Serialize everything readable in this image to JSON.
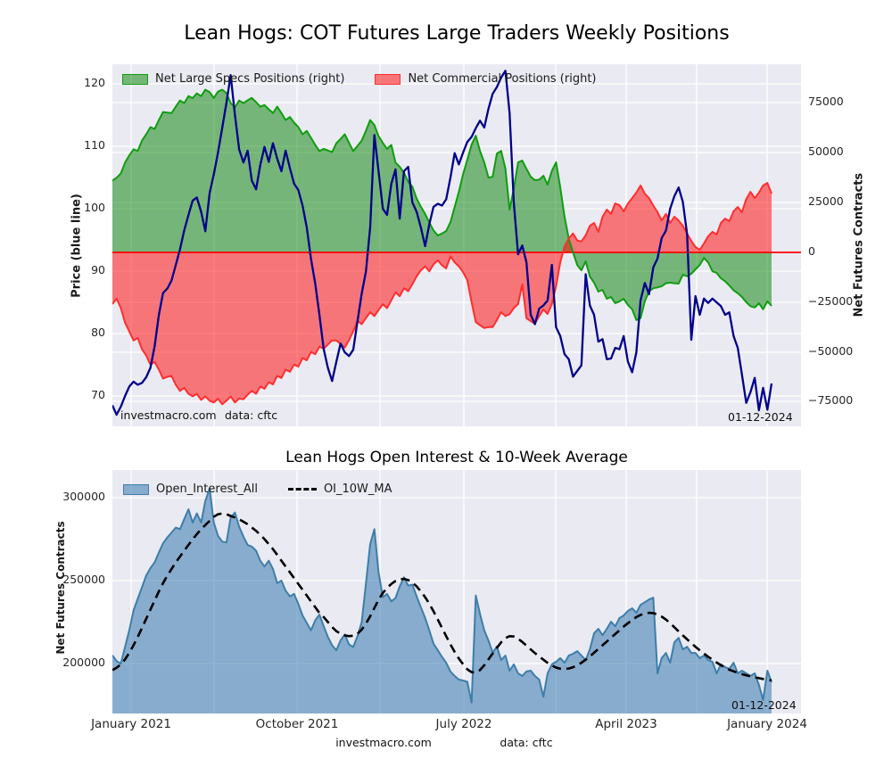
{
  "top_chart": {
    "title": "Lean Hogs: COT Futures Large Traders Weekly Positions",
    "legend": [
      "Net Large Specs Positions (right)",
      "Net Commercial Positions (right)"
    ],
    "ylabel_left": "Price (blue line)",
    "ylabel_right": "Net Futures Contracts",
    "watermark": "investmacro.com",
    "data_source": "data: cftc",
    "date_label": "01-12-2024"
  },
  "bottom_chart": {
    "title": "Lean Hogs Open Interest & 10-Week Average",
    "legend": [
      "Open_Interest_All",
      "OI_10W_MA"
    ],
    "ylabel_left": "Net Futures Contracts",
    "watermark": "investmacro.com",
    "data_source": "data: cftc",
    "date_label": "01-12-2024"
  },
  "chart_data": [
    {
      "type": "area",
      "title": "Lean Hogs: COT Futures Large Traders Weekly Positions",
      "x_unit": "week_index_2021_01_to_2024_01",
      "n_weeks": 157,
      "xtick_labels": [
        "January 2021",
        "October 2021",
        "July 2022",
        "April 2023",
        "January 2024"
      ],
      "ylabel_price": "Price (blue line)",
      "ylim_price": [
        65.1,
        123.1
      ],
      "yticks_price": [
        "120",
        "110",
        "100",
        "90",
        "80",
        "70"
      ],
      "ylabel_net": "Net Futures Contracts",
      "ylim_net": [
        -87360,
        94540
      ],
      "yticks_net": [
        "75000",
        "50000",
        "25000",
        "0",
        "−25000",
        "−50000",
        "−75000"
      ],
      "zero_line_color": "#ff0000",
      "grid": true,
      "legend_position": "upper-left-inside",
      "series": [
        {
          "name": "Net Large Specs Positions (right)",
          "kind": "area",
          "axis": "net",
          "color": "#008000",
          "values": [
            36000,
            37500,
            39700,
            45100,
            48700,
            51800,
            51000,
            56200,
            59300,
            62900,
            62000,
            66500,
            70500,
            70200,
            70000,
            73200,
            76300,
            75000,
            78500,
            77500,
            79900,
            78500,
            81700,
            80500,
            77600,
            80800,
            81700,
            80000,
            75000,
            72800,
            76300,
            75000,
            76400,
            77600,
            75500,
            73200,
            74000,
            71900,
            70000,
            73200,
            70000,
            66500,
            68000,
            65200,
            63000,
            59300,
            61000,
            57600,
            54000,
            50900,
            52000,
            51200,
            50400,
            54900,
            57000,
            59300,
            55000,
            50900,
            53500,
            56200,
            61000,
            66500,
            64000,
            58400,
            55000,
            52000,
            54000,
            45100,
            43000,
            40000,
            35500,
            33000,
            27000,
            23000,
            19300,
            15000,
            11000,
            8500,
            9500,
            10700,
            15200,
            22800,
            30400,
            39400,
            46500,
            54100,
            58600,
            51000,
            45200,
            37600,
            38000,
            49700,
            51000,
            42100,
            21500,
            31800,
            45200,
            46100,
            42000,
            38000,
            36300,
            36500,
            38500,
            34000,
            41000,
            45200,
            32700,
            17900,
            7000,
            0,
            -6300,
            -9000,
            -4500,
            -12100,
            -15200,
            -19700,
            -18800,
            -23300,
            -22400,
            -25500,
            -24600,
            -23300,
            -26400,
            -28600,
            -34000,
            -33000,
            -24500,
            -19500,
            -18000,
            -17600,
            -17000,
            -15500,
            -15200,
            -15500,
            -15700,
            -11200,
            -12000,
            -10700,
            -8500,
            -6300,
            -2800,
            -5000,
            -9500,
            -10300,
            -13000,
            -14500,
            -16600,
            -19000,
            -20500,
            -22400,
            -25000,
            -27000,
            -27700,
            -25500,
            -28600,
            -24600,
            -26900
          ]
        },
        {
          "name": "Net Commercial Positions (right)",
          "kind": "area",
          "axis": "net",
          "color": "#ff0000",
          "values": [
            -26000,
            -23200,
            -28000,
            -35300,
            -39700,
            -44200,
            -43000,
            -48700,
            -51800,
            -56300,
            -55000,
            -58900,
            -63400,
            -62500,
            -62000,
            -66500,
            -69600,
            -68000,
            -71000,
            -72300,
            -71000,
            -74100,
            -72300,
            -74500,
            -75400,
            -73500,
            -76300,
            -74500,
            -72300,
            -75400,
            -73400,
            -73800,
            -71500,
            -69600,
            -71000,
            -67400,
            -68500,
            -65200,
            -66300,
            -62000,
            -63100,
            -58900,
            -60000,
            -56300,
            -57400,
            -53100,
            -54200,
            -50000,
            -51100,
            -47300,
            -48400,
            -46300,
            -44200,
            -44200,
            -46000,
            -47800,
            -44000,
            -39700,
            -34400,
            -36000,
            -33000,
            -30000,
            -32000,
            -29000,
            -26000,
            -28000,
            -24000,
            -20000,
            -22000,
            -18000,
            -19500,
            -16000,
            -12000,
            -9000,
            -7000,
            -9500,
            -6000,
            -4000,
            -6500,
            -8000,
            -2000,
            -5000,
            -7000,
            -10000,
            -14000,
            -25000,
            -35000,
            -36600,
            -38000,
            -37500,
            -37500,
            -34000,
            -30000,
            -32000,
            -31000,
            -28000,
            -26000,
            -16100,
            -33100,
            -34500,
            -35800,
            -32000,
            -28700,
            -30900,
            -26000,
            -17000,
            -5000,
            3000,
            7000,
            9500,
            6000,
            5500,
            8500,
            13400,
            14800,
            10300,
            17900,
            21500,
            19300,
            24600,
            23700,
            20600,
            24500,
            27300,
            30000,
            33600,
            29500,
            27300,
            23500,
            20200,
            16100,
            19300,
            14800,
            17900,
            16000,
            13400,
            9400,
            5800,
            2700,
            1300,
            4500,
            8100,
            10300,
            9000,
            14800,
            17000,
            15700,
            20600,
            22800,
            20200,
            26800,
            30400,
            27300,
            30000,
            33600,
            34900,
            29500
          ]
        },
        {
          "name": "Price",
          "kind": "line",
          "axis": "price",
          "color": "#00008b",
          "values": [
            68.5,
            67.0,
            68.3,
            70.0,
            71.5,
            72.3,
            71.8,
            72.1,
            73.0,
            74.5,
            78.0,
            83.0,
            86.5,
            87.2,
            88.5,
            91.0,
            93.5,
            96.5,
            99.0,
            101.3,
            101.8,
            99.5,
            96.4,
            102.5,
            105.5,
            109.0,
            113.0,
            117.0,
            121.4,
            115.0,
            109.5,
            107.4,
            109.3,
            104.5,
            103.1,
            107.0,
            109.9,
            107.5,
            110.5,
            108.0,
            106.0,
            109.3,
            106.5,
            104.0,
            103.0,
            100.5,
            97.0,
            92.0,
            88.0,
            83.0,
            77.5,
            74.5,
            72.4,
            75.5,
            78.4,
            77.0,
            76.4,
            77.4,
            82.0,
            86.4,
            89.9,
            97.0,
            111.8,
            106.0,
            100.0,
            99.0,
            104.0,
            106.3,
            98.4,
            106.0,
            106.7,
            101.0,
            99.5,
            97.0,
            94.0,
            97.5,
            100.3,
            100.8,
            100.5,
            101.5,
            105.0,
            108.9,
            107.1,
            109.0,
            110.7,
            111.5,
            112.9,
            114.1,
            113.0,
            116.0,
            118.4,
            119.5,
            121.0,
            122.1,
            115.3,
            101.0,
            92.7,
            94.1,
            91.4,
            83.0,
            81.5,
            84.0,
            84.5,
            85.3,
            91.0,
            81.0,
            79.6,
            76.7,
            75.9,
            73.1,
            74.0,
            74.9,
            89.5,
            84.5,
            83.0,
            78.7,
            79.1,
            75.9,
            76.0,
            77.7,
            77.5,
            79.6,
            75.5,
            73.8,
            77.0,
            85.3,
            88.1,
            86.3,
            90.6,
            92.0,
            95.3,
            96.5,
            100.0,
            102.0,
            103.4,
            101.1,
            95.9,
            79.0,
            86.0,
            83.0,
            85.6,
            84.9,
            85.6,
            85.0,
            84.4,
            83.0,
            83.4,
            79.6,
            77.7,
            73.4,
            68.9,
            70.6,
            72.9,
            67.7,
            71.3,
            67.8,
            72.0
          ]
        }
      ],
      "annotations": [
        "investmacro.com",
        "data: cftc",
        "01-12-2024"
      ]
    },
    {
      "type": "area",
      "title": "Lean Hogs Open Interest & 10-Week Average",
      "x_unit": "week_index_2021_01_to_2024_01",
      "n_weeks": 157,
      "xtick_labels": [
        "January 2021",
        "October 2021",
        "July 2022",
        "April 2023",
        "January 2024"
      ],
      "ylabel": "Net Futures Contracts",
      "ylim": [
        169890,
        316670
      ],
      "yticks": [
        "300000",
        "250000",
        "200000"
      ],
      "grid": true,
      "legend_position": "upper-left-inside",
      "series": [
        {
          "name": "Open_Interest_All",
          "kind": "area",
          "color": "#4682b4",
          "values": [
            205000,
            201500,
            200000,
            210000,
            220000,
            232000,
            239000,
            246000,
            253000,
            257500,
            261000,
            267000,
            272500,
            276000,
            279000,
            282000,
            281000,
            287000,
            293000,
            285000,
            290500,
            285000,
            298000,
            305500,
            285000,
            277000,
            273500,
            273000,
            288000,
            291000,
            282500,
            276500,
            271500,
            270500,
            268000,
            262000,
            258500,
            262000,
            257000,
            248500,
            250000,
            244000,
            240500,
            242000,
            236000,
            229000,
            224500,
            220000,
            226000,
            229500,
            222500,
            216000,
            211000,
            208000,
            214000,
            217500,
            211500,
            210000,
            216500,
            225000,
            248000,
            272000,
            281000,
            255000,
            240000,
            242000,
            237500,
            239500,
            246500,
            252000,
            247000,
            247500,
            240500,
            234000,
            227500,
            220000,
            212000,
            208000,
            204000,
            200500,
            195200,
            192500,
            190300,
            189800,
            189000,
            176500,
            241000,
            230000,
            220000,
            213900,
            206600,
            210300,
            202100,
            204800,
            195700,
            199500,
            194100,
            192500,
            195200,
            195700,
            192500,
            190300,
            180000,
            194100,
            199500,
            201100,
            203300,
            200500,
            204800,
            205900,
            207500,
            204800,
            202100,
            208600,
            218200,
            220900,
            217100,
            220900,
            225200,
            222500,
            227400,
            229000,
            231700,
            233300,
            230600,
            235400,
            237000,
            238600,
            239700,
            194100,
            203300,
            206400,
            200500,
            212800,
            215500,
            208600,
            210100,
            206400,
            206400,
            203300,
            204800,
            202100,
            201100,
            194100,
            199500,
            197900,
            196800,
            200500,
            194100,
            195700,
            194100,
            192500,
            194100,
            187200,
            178100,
            195700,
            188800
          ]
        },
        {
          "name": "OI_10W_MA",
          "kind": "dashed-line",
          "color": "#000000",
          "values": [
            196000,
            197500,
            199500,
            202500,
            206500,
            211000,
            216000,
            221500,
            227000,
            232500,
            238000,
            243500,
            248500,
            253000,
            257000,
            261000,
            264500,
            268000,
            271500,
            275000,
            278000,
            281000,
            283500,
            286000,
            288500,
            290000,
            290500,
            290000,
            289000,
            288000,
            287000,
            285500,
            284000,
            282000,
            280000,
            277500,
            275000,
            272000,
            269000,
            265500,
            262000,
            258500,
            255000,
            251500,
            248000,
            244500,
            241000,
            237500,
            234000,
            230500,
            228000,
            225000,
            222000,
            219500,
            218000,
            217000,
            216500,
            216800,
            218000,
            220500,
            224000,
            228500,
            233500,
            238500,
            242500,
            245500,
            248000,
            249800,
            250800,
            251000,
            250300,
            248800,
            246500,
            243500,
            240000,
            236000,
            231500,
            226500,
            221500,
            216500,
            211500,
            207000,
            203000,
            199500,
            196500,
            194800,
            194600,
            196000,
            199000,
            202500,
            206000,
            209500,
            212800,
            215300,
            216500,
            216300,
            215000,
            213000,
            210800,
            208500,
            206300,
            204300,
            202300,
            200400,
            198800,
            197600,
            196900,
            196700,
            197000,
            197800,
            199000,
            200500,
            202300,
            204300,
            206500,
            208800,
            211000,
            213300,
            215500,
            217800,
            220000,
            222300,
            224300,
            226300,
            228000,
            229300,
            230200,
            230600,
            230400,
            229600,
            228300,
            226500,
            224300,
            221900,
            219400,
            217000,
            214600,
            212300,
            210100,
            208000,
            206000,
            204100,
            202300,
            200600,
            199000,
            197500,
            196300,
            195300,
            194400,
            193600,
            192900,
            192300,
            191700,
            191200,
            190700,
            190200,
            189800
          ]
        }
      ],
      "annotations": [
        "investmacro.com",
        "data: cftc",
        "01-12-2024"
      ]
    }
  ]
}
